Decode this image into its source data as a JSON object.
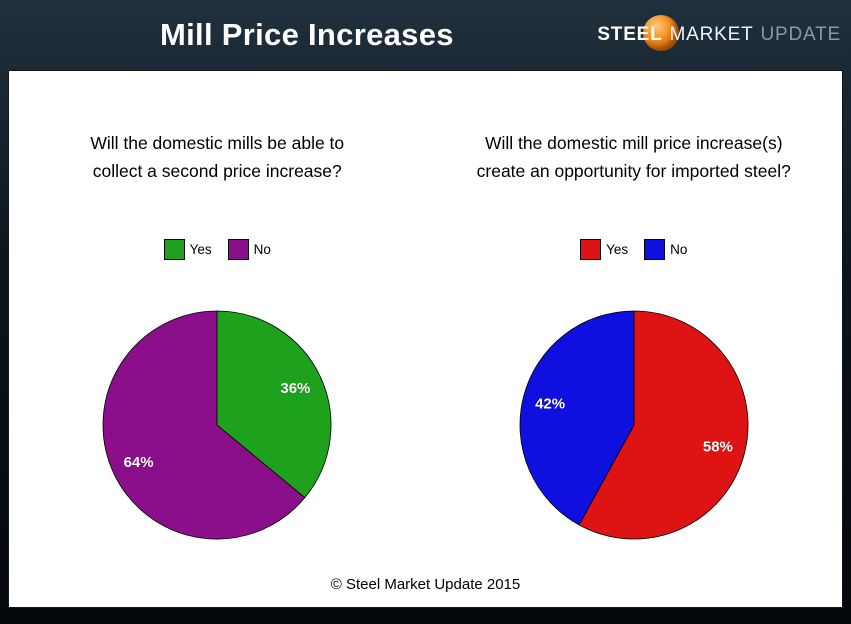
{
  "header": {
    "title": "Mill Price Increases",
    "logo": {
      "word1": "STEEL",
      "word2": "MARKET",
      "word3": "UPDATE",
      "ball_color": "#f5871a"
    }
  },
  "footer": {
    "copyright": "© Steel Market Update 2015"
  },
  "chart_data": [
    {
      "type": "pie",
      "title": "Will the domestic mills be able to collect a second price increase?",
      "title_lines": [
        "Will the domestic mills be able to",
        "collect a second price increase?"
      ],
      "labels": [
        "Yes",
        "No"
      ],
      "values": [
        36,
        64
      ],
      "data_labels": [
        "36%",
        "64%"
      ],
      "colors": [
        "#1ea21e",
        "#8b0e8b"
      ],
      "start_angle_deg": -90,
      "direction": "clockwise",
      "legend_position": "top"
    },
    {
      "type": "pie",
      "title": "Will the domestic mill price increase(s) create an opportunity for imported steel?",
      "title_lines": [
        "Will the domestic mill price increase(s)",
        "create an opportunity for imported steel?"
      ],
      "labels": [
        "Yes",
        "No"
      ],
      "values": [
        58,
        42
      ],
      "data_labels": [
        "58%",
        "42%"
      ],
      "colors": [
        "#de1414",
        "#0f0fe0"
      ],
      "start_angle_deg": -90,
      "direction": "clockwise",
      "legend_position": "top"
    }
  ]
}
